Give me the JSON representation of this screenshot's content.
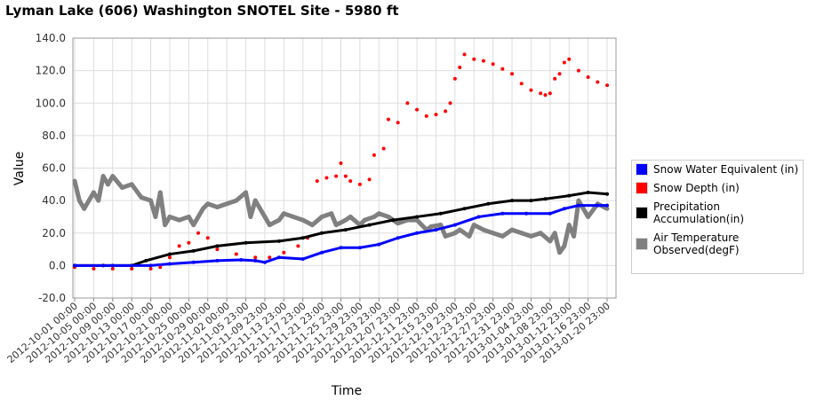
{
  "chart_data": {
    "type": "scatter",
    "title": "Lyman Lake (606) Washington  SNOTEL Site - 5980 ft",
    "xlabel": "Time",
    "ylabel": "Value",
    "ylim": [
      -20,
      140
    ],
    "yticks": [
      "-20.0",
      "0.0",
      "20.0",
      "40.0",
      "60.0",
      "80.0",
      "100.0",
      "120.0",
      "140.0"
    ],
    "x_unit": "days since 2012-10-01 00:00",
    "xlim": [
      0,
      113
    ],
    "xticks": [
      "2012-10-01 00:00",
      "2012-10-05 00:00",
      "2012-10-09 00:00",
      "2012-10-13 00:00",
      "2012-10-17 00:00",
      "2012-10-21 00:00",
      "2012-10-25 00:00",
      "2012-10-29 00:00",
      "2012-11-02 00:00",
      "2012-11-05 23:00",
      "2012-11-09 23:00",
      "2012-11-13 23:00",
      "2012-11-17 23:00",
      "2012-11-21 23:00",
      "2012-11-25 23:00",
      "2012-11-29 23:00",
      "2012-12-03 23:00",
      "2012-12-07 23:00",
      "2012-12-11 23:00",
      "2012-12-15 23:00",
      "2012-12-19 23:00",
      "2012-12-23 23:00",
      "2012-12-27 23:00",
      "2012-12-31 23:00",
      "2013-01-04 23:00",
      "2013-01-08 23:00",
      "2013-01-12 23:00",
      "2013-01-16 23:00",
      "2013-01-20 23:00"
    ],
    "grid": true,
    "legend_position": "right",
    "series": [
      {
        "name": "Snow Water Equivalent (in)",
        "color": "#0000ff",
        "x": [
          0,
          8,
          16,
          20,
          25,
          30,
          35,
          38,
          40,
          43,
          48,
          52,
          56,
          60,
          64,
          68,
          72,
          76,
          80,
          85,
          90,
          95,
          100,
          103,
          106,
          110,
          112
        ],
        "y": [
          0,
          0,
          0,
          1,
          2,
          3,
          3.5,
          3,
          2,
          5,
          4,
          8,
          11,
          11,
          13,
          17,
          20,
          22,
          25,
          30,
          32,
          32,
          32,
          35,
          37,
          37,
          37
        ]
      },
      {
        "name": "Snow Depth (in)",
        "color": "#ff0000",
        "x": [
          0,
          4,
          8,
          12,
          16,
          18,
          20,
          22,
          24,
          26,
          28,
          30,
          34,
          38,
          41,
          44,
          47,
          49,
          51,
          53,
          55,
          56,
          57,
          58,
          60,
          62,
          63,
          65,
          66,
          68,
          70,
          72,
          74,
          76,
          78,
          79,
          80,
          81,
          82,
          84,
          86,
          88,
          90,
          92,
          94,
          96,
          98,
          99,
          100,
          101,
          102,
          103,
          104,
          106,
          108,
          110,
          112
        ],
        "y": [
          -1,
          -2,
          -2,
          -2,
          -2,
          -1,
          5,
          12,
          14,
          20,
          17,
          10,
          7,
          5,
          5,
          8,
          12,
          17,
          52,
          54,
          55,
          63,
          55,
          52,
          50,
          53,
          68,
          72,
          90,
          88,
          100,
          96,
          92,
          93,
          95,
          100,
          115,
          122,
          130,
          127,
          126,
          124,
          121,
          118,
          112,
          108,
          106,
          105,
          106,
          115,
          118,
          125,
          127,
          120,
          116,
          113,
          111
        ]
      },
      {
        "name": "Precipitation Accumulation(in)",
        "color": "#000000",
        "x": [
          0,
          6,
          12,
          15,
          20,
          25,
          30,
          36,
          43,
          48,
          52,
          57,
          62,
          67,
          72,
          77,
          82,
          87,
          92,
          96,
          99,
          104,
          108,
          112
        ],
        "y": [
          0,
          0,
          0,
          3,
          7,
          9,
          12,
          14,
          15,
          17,
          20,
          22,
          25,
          28,
          30,
          32,
          35,
          38,
          40,
          40,
          41,
          43,
          45,
          44
        ]
      },
      {
        "name": "Air Temperature Observed(degF)",
        "color": "#808080",
        "x": [
          0,
          1,
          2,
          4,
          5,
          6,
          7,
          8,
          10,
          12,
          14,
          16,
          17,
          18,
          19,
          20,
          22,
          24,
          25,
          27,
          28,
          30,
          32,
          34,
          36,
          37,
          38,
          40,
          41,
          43,
          44,
          46,
          48,
          50,
          52,
          54,
          55,
          57,
          58,
          60,
          61,
          63,
          64,
          66,
          68,
          70,
          72,
          74,
          75,
          77,
          78,
          80,
          81,
          83,
          84,
          86,
          88,
          90,
          92,
          94,
          96,
          98,
          100,
          101,
          102,
          103,
          104,
          105,
          106,
          108,
          110,
          112
        ],
        "y": [
          52,
          40,
          35,
          45,
          40,
          55,
          50,
          55,
          48,
          50,
          42,
          40,
          30,
          45,
          25,
          30,
          28,
          30,
          25,
          35,
          38,
          36,
          38,
          40,
          45,
          30,
          40,
          30,
          25,
          28,
          32,
          30,
          28,
          25,
          30,
          32,
          25,
          28,
          30,
          25,
          28,
          30,
          32,
          30,
          26,
          28,
          28,
          22,
          24,
          25,
          18,
          20,
          22,
          18,
          25,
          22,
          20,
          18,
          22,
          20,
          18,
          20,
          15,
          20,
          8,
          12,
          25,
          18,
          40,
          30,
          38,
          35
        ]
      }
    ]
  }
}
